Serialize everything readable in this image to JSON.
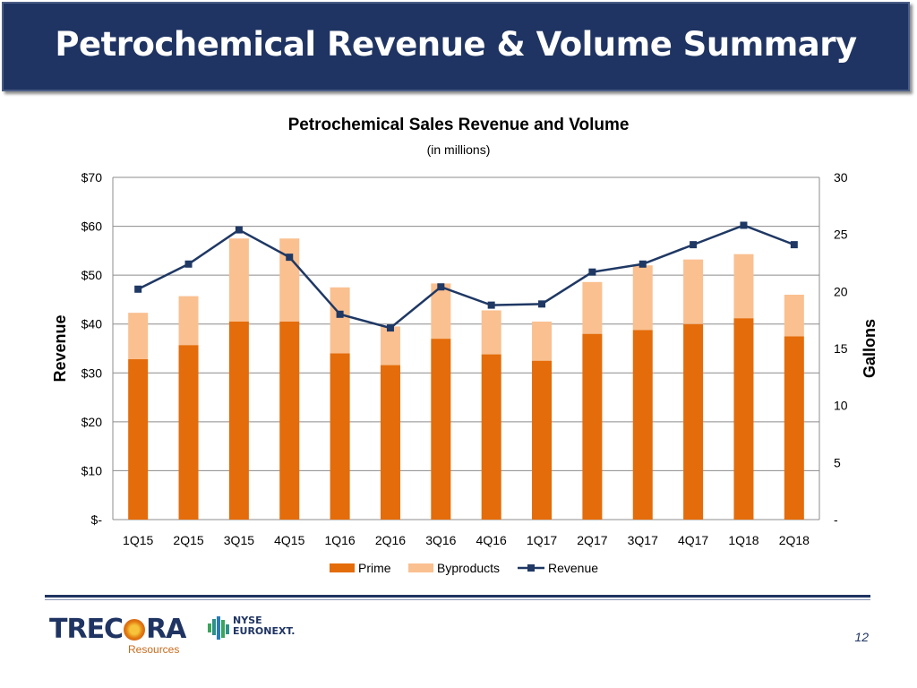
{
  "slide": {
    "title": "Petrochemical Revenue & Volume Summary",
    "page_number": "12"
  },
  "logos": {
    "trecora_word_1": "TREC",
    "trecora_word_2": "RA",
    "trecora_sub": "Resources",
    "nyse_line_1": "NYSE",
    "nyse_line_2": "EURONEXT."
  },
  "colors": {
    "title_bar": "#1f3462",
    "prime": "#e46c0a",
    "byproducts": "#fac090",
    "revenue_line": "#1f3864"
  },
  "chart_data": {
    "type": "bar",
    "stacked": true,
    "title": "Petrochemical Sales Revenue and Volume",
    "subtitle": "(in millions)",
    "ylabel": "Revenue",
    "y2label": "Gallons",
    "categories": [
      "1Q15",
      "2Q15",
      "3Q15",
      "4Q15",
      "1Q16",
      "2Q16",
      "3Q16",
      "4Q16",
      "1Q17",
      "2Q17",
      "3Q17",
      "4Q17",
      "1Q18",
      "2Q18"
    ],
    "ylim": [
      0,
      70
    ],
    "y2lim": [
      0,
      30
    ],
    "y_ticks": [
      0,
      10,
      20,
      30,
      40,
      50,
      60,
      70
    ],
    "y_tick_labels": [
      "$-",
      "$10",
      "$20",
      "$30",
      "$40",
      "$50",
      "$60",
      "$70"
    ],
    "y2_ticks": [
      0,
      5,
      10,
      15,
      20,
      25,
      30
    ],
    "y2_tick_labels": [
      "-",
      "5",
      "10",
      "15",
      "20",
      "25",
      "30"
    ],
    "grid": true,
    "legend_position": "bottom",
    "series": [
      {
        "name": "Prime",
        "type": "bar",
        "axis": "left",
        "color": "#e46c0a",
        "values": [
          32.8,
          35.7,
          40.5,
          40.5,
          34.0,
          31.6,
          37.0,
          33.8,
          32.5,
          38.0,
          38.8,
          40.0,
          41.2,
          37.5
        ]
      },
      {
        "name": "Byproducts",
        "type": "bar",
        "axis": "left",
        "color": "#fac090",
        "values": [
          9.5,
          10.0,
          17.0,
          17.0,
          13.5,
          7.9,
          11.3,
          9.0,
          8.0,
          10.6,
          13.2,
          13.2,
          13.1,
          8.5
        ]
      },
      {
        "name": "Revenue",
        "type": "line",
        "axis": "right",
        "color": "#1f3864",
        "marker": "square",
        "values": [
          20.2,
          22.4,
          25.4,
          23.0,
          18.0,
          16.8,
          20.4,
          18.8,
          18.9,
          21.7,
          22.4,
          24.1,
          25.8,
          24.1
        ]
      }
    ]
  }
}
